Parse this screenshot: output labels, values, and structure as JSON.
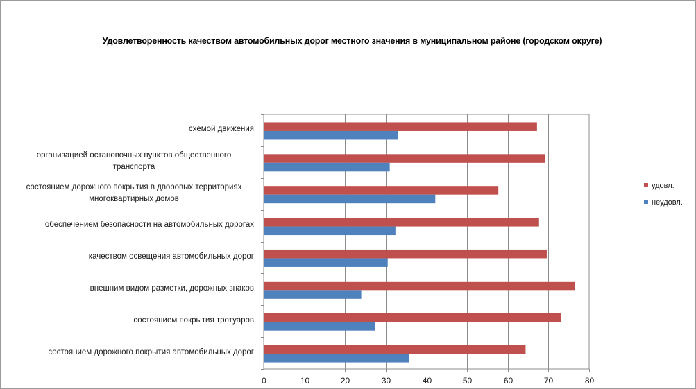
{
  "chart_data": {
    "type": "bar",
    "orientation": "horizontal",
    "title": "Удовлетворенность качеством автомобильных дорог местного значения в муниципальном районе (городском округе)",
    "categories": [
      "схемой движения",
      "организацией остановочных пунктов общественного транспорта",
      "состоянием дорожного покрытия в дворовых территориях многоквартирных домов",
      "обеспечением  безопасности на автомобильных дорогах",
      "качеством освещения автомобильных дорог",
      "внешним видом разметки, дорожных знаков",
      "состоянием покрытия тротуаров",
      "состоянием дорожного покрытия автомобильных дорог"
    ],
    "category_lines": [
      [
        "схемой движения"
      ],
      [
        "организацией остановочных пунктов общественного",
        "транспорта"
      ],
      [
        "состоянием дорожного покрытия в дворовых территориях",
        "многоквартирных домов"
      ],
      [
        "обеспечением  безопасности на автомобильных дорогах"
      ],
      [
        "качеством освещения автомобильных дорог"
      ],
      [
        "внешним видом разметки, дорожных знаков"
      ],
      [
        "состоянием покрытия тротуаров"
      ],
      [
        "состоянием дорожного покрытия автомобильных дорог"
      ]
    ],
    "series": [
      {
        "name": "удовл.",
        "color": "#c0504d",
        "values": [
          67.1,
          69.1,
          57.6,
          67.6,
          69.5,
          76.4,
          73,
          64.3
        ]
      },
      {
        "name": "неудовл.",
        "color": "#4f81bd",
        "values": [
          32.9,
          30.9,
          42.1,
          32.3,
          30.4,
          23.9,
          27.3,
          35.7
        ]
      }
    ],
    "xlim": [
      0,
      80
    ],
    "xticks": [
      "0",
      "10",
      "20",
      "30",
      "40",
      "50",
      "60",
      "70",
      "80"
    ],
    "xlabel": "",
    "ylabel": "",
    "grid": "vertical",
    "legend_position": "right"
  }
}
